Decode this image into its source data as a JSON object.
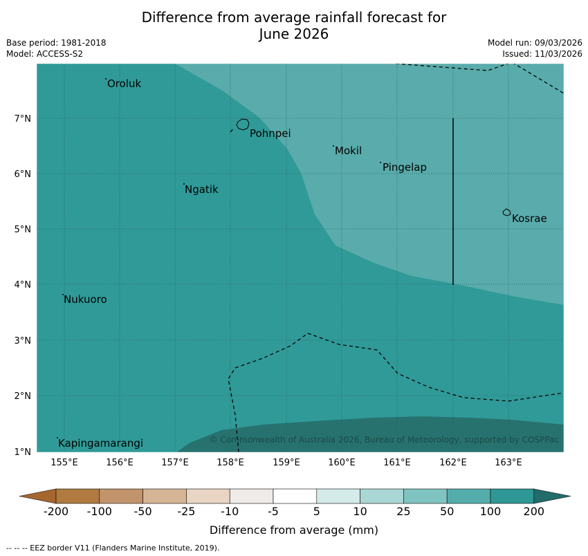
{
  "header": {
    "title_line1": "Difference from average rainfall forecast for",
    "title_line2": "June 2026",
    "base_period": "Base period: 1981-2018",
    "model": "Model: ACCESS-S2",
    "model_run": "Model run: 09/03/2026",
    "issued": "Issued: 11/03/2026"
  },
  "map": {
    "lon_labels": [
      "155°E",
      "156°E",
      "157°E",
      "158°E",
      "159°E",
      "160°E",
      "161°E",
      "162°E",
      "163°E"
    ],
    "lat_labels": [
      "7°N",
      "6°N",
      "5°N",
      "4°N",
      "3°N",
      "2°N",
      "1°N"
    ],
    "places": [
      "Oroluk",
      "Pohnpei",
      "Mokil",
      "Pingelap",
      "Ngatik",
      "Kosrae",
      "Nukuoro",
      "Kapingamarangi"
    ],
    "copyright": "© Commonwealth of Australia 2026, Bureau of Meteorology, supported by COSPPac",
    "colors": {
      "cat_50": "#5aabab",
      "cat_100": "#309a98",
      "cat_200": "#27726f"
    }
  },
  "colorbar": {
    "tick_labels": [
      "-200",
      "-100",
      "-50",
      "-25",
      "-10",
      "-5",
      "5",
      "10",
      "25",
      "50",
      "100",
      "200"
    ],
    "colors": [
      "#a6672f",
      "#b07a40",
      "#c2946b",
      "#d6b596",
      "#e8d5c3",
      "#eeebe8",
      "#ffffff",
      "#d4ebea",
      "#aad7d5",
      "#80c4c1",
      "#55adab",
      "#2f9896",
      "#226c6b"
    ],
    "label": "Difference from average (mm)"
  },
  "footer": {
    "credit": "--  --  -- EEZ border V11 (Flanders Marine Institute, 2019)."
  }
}
